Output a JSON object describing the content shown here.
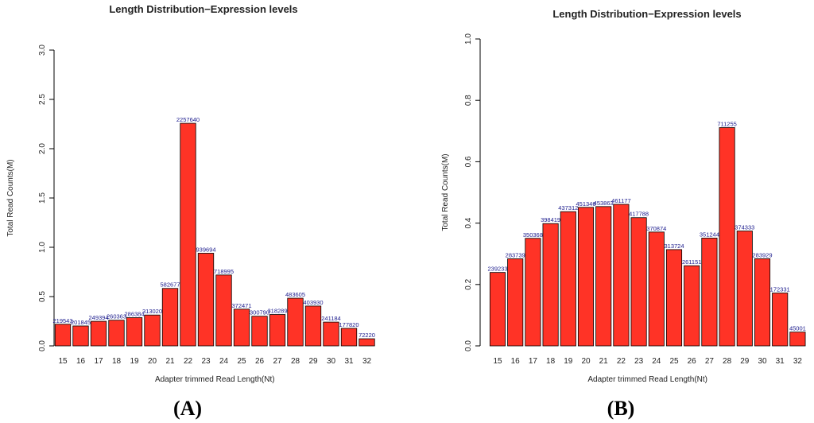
{
  "chart_data": [
    {
      "type": "bar",
      "panel_label": "(A)",
      "title": "Length Distribution−Expression levels",
      "xlabel": "Adapter trimmed Read Length(Nt)",
      "ylabel": "Total Read Counts(M)",
      "ylim": [
        0,
        3.0
      ],
      "yticks": [
        "0.0",
        "0.5",
        "1.0",
        "1.5",
        "2.0",
        "2.5",
        "3.0"
      ],
      "categories": [
        "15",
        "16",
        "17",
        "18",
        "19",
        "20",
        "21",
        "22",
        "23",
        "24",
        "25",
        "26",
        "27",
        "28",
        "29",
        "30",
        "31",
        "32"
      ],
      "values": [
        219543,
        201845,
        249394,
        260363,
        286384,
        313020,
        582677,
        2257640,
        939694,
        718995,
        372471,
        300790,
        318289,
        483605,
        403930,
        241184,
        177820,
        72220
      ],
      "labels": [
        "219543",
        "201845",
        "249394",
        "260363",
        "286384",
        "313020",
        "582677",
        "2257640",
        "939694",
        "718995",
        "372471",
        "300790",
        "318289",
        "483605",
        "403930",
        "241184",
        "177820",
        "72220"
      ]
    },
    {
      "type": "bar",
      "panel_label": "(B)",
      "title": "Length Distribution−Expression levels",
      "xlabel": "Adapter trimmed Read Length(Nt)",
      "ylabel": "Total Read Counts(M)",
      "ylim": [
        0,
        1.0
      ],
      "yticks": [
        "0.0",
        "0.2",
        "0.4",
        "0.6",
        "0.8",
        "1.0"
      ],
      "categories": [
        "15",
        "16",
        "17",
        "18",
        "19",
        "20",
        "21",
        "22",
        "23",
        "24",
        "25",
        "26",
        "27",
        "28",
        "29",
        "30",
        "31",
        "32"
      ],
      "values": [
        239233,
        283739,
        350368,
        398419,
        437312,
        451346,
        453863,
        461177,
        417788,
        370874,
        313724,
        261151,
        351244,
        711255,
        374333,
        283929,
        172331,
        45001
      ],
      "labels": [
        "239233",
        "283739",
        "350368",
        "398419",
        "437312",
        "451346",
        "453863",
        "461177",
        "417788",
        "370874",
        "313724",
        "261151",
        "351244",
        "711255",
        "374333",
        "283929",
        "172331",
        "45001"
      ]
    }
  ]
}
